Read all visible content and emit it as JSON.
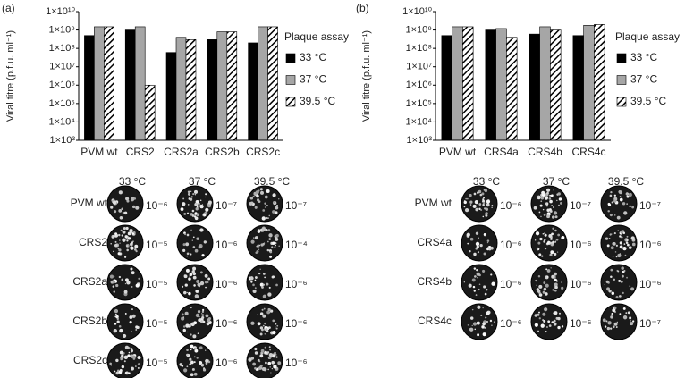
{
  "panel_labels": [
    "(a)",
    "(b)"
  ],
  "chart_data": [
    {
      "type": "bar",
      "y_label": "Viral titre (p.f.u. ml⁻¹)",
      "log_scale": true,
      "legend_title": "Plaque assay",
      "legend_position": "right",
      "categories": [
        "PVM wt",
        "CRS2",
        "CRS2a",
        "CRS2b",
        "CRS2c"
      ],
      "series": [
        {
          "name": "33 °C",
          "color": "#000000",
          "values": [
            500000000,
            1000000000,
            60000000,
            300000000,
            200000000
          ]
        },
        {
          "name": "37 °C",
          "color": "#a6a6a6",
          "values": [
            1500000000,
            1500000000,
            400000000,
            800000000,
            1500000000
          ]
        },
        {
          "name": "39.5 °C",
          "color": "#000000",
          "hatch": true,
          "values": [
            1500000000,
            1000000,
            300000000,
            800000000,
            1500000000
          ]
        }
      ],
      "ylim": [
        1000,
        10000000000
      ],
      "yticks": [
        {
          "value": 1000,
          "label": "1×10³"
        },
        {
          "value": 10000,
          "label": "1×10⁴"
        },
        {
          "value": 100000,
          "label": "1×10⁵"
        },
        {
          "value": 1000000,
          "label": "1×10⁶"
        },
        {
          "value": 10000000,
          "label": "1×10⁷"
        },
        {
          "value": 100000000,
          "label": "1×10⁸"
        },
        {
          "value": 1000000000,
          "label": "1×10⁹"
        },
        {
          "value": 10000000000,
          "label": "1×10¹⁰"
        }
      ]
    },
    {
      "type": "bar",
      "y_label": "Viral titre (p.f.u. ml⁻¹)",
      "log_scale": true,
      "legend_title": "Plaque assay",
      "legend_position": "right",
      "categories": [
        "PVM wt",
        "CRS4a",
        "CRS4b",
        "CRS4c"
      ],
      "series": [
        {
          "name": "33 °C",
          "color": "#000000",
          "values": [
            500000000,
            1000000000,
            600000000,
            500000000
          ]
        },
        {
          "name": "37 °C",
          "color": "#a6a6a6",
          "values": [
            1500000000,
            1200000000,
            1500000000,
            1800000000
          ]
        },
        {
          "name": "39.5 °C",
          "color": "#000000",
          "hatch": true,
          "values": [
            1500000000,
            400000000,
            1000000000,
            2000000000
          ]
        }
      ],
      "ylim": [
        1000,
        10000000000
      ],
      "yticks": [
        {
          "value": 1000,
          "label": "1×10³"
        },
        {
          "value": 10000,
          "label": "1×10⁴"
        },
        {
          "value": 100000,
          "label": "1×10⁵"
        },
        {
          "value": 1000000,
          "label": "1×10⁶"
        },
        {
          "value": 10000000,
          "label": "1×10⁷"
        },
        {
          "value": 100000000,
          "label": "1×10⁸"
        },
        {
          "value": 1000000000,
          "label": "1×10⁹"
        },
        {
          "value": 10000000000,
          "label": "1×10¹⁰"
        }
      ]
    }
  ],
  "plaque_panels": [
    {
      "columns": [
        "33 °C",
        "37 °C",
        "39.5 °C"
      ],
      "rows": [
        {
          "name": "PVM wt",
          "dilutions": [
            "10⁻⁶",
            "10⁻⁷",
            "10⁻⁷"
          ]
        },
        {
          "name": "CRS2",
          "dilutions": [
            "10⁻⁵",
            "10⁻⁶",
            "10⁻⁴"
          ]
        },
        {
          "name": "CRS2a",
          "dilutions": [
            "10⁻⁵",
            "10⁻⁶",
            "10⁻⁶"
          ]
        },
        {
          "name": "CRS2b",
          "dilutions": [
            "10⁻⁵",
            "10⁻⁶",
            "10⁻⁶"
          ]
        },
        {
          "name": "CRS2c",
          "dilutions": [
            "10⁻⁵",
            "10⁻⁶",
            "10⁻⁶"
          ]
        }
      ]
    },
    {
      "columns": [
        "33 °C",
        "37 °C",
        "39.5 °C"
      ],
      "rows": [
        {
          "name": "PVM wt",
          "dilutions": [
            "10⁻⁶",
            "10⁻⁷",
            "10⁻⁷"
          ]
        },
        {
          "name": "CRS4a",
          "dilutions": [
            "10⁻⁶",
            "10⁻⁶",
            "10⁻⁶"
          ]
        },
        {
          "name": "CRS4b",
          "dilutions": [
            "10⁻⁶",
            "10⁻⁶",
            "10⁻⁶"
          ]
        },
        {
          "name": "CRS4c",
          "dilutions": [
            "10⁻⁶",
            "10⁻⁶",
            "10⁻⁷"
          ]
        }
      ]
    }
  ]
}
